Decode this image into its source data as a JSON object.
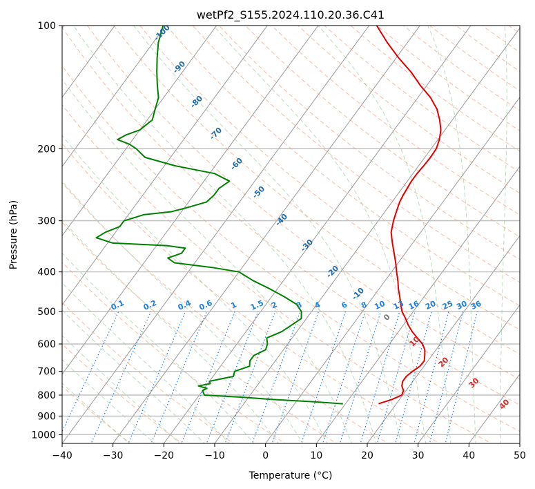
{
  "chart_data": {
    "type": "line",
    "subtype": "skew-t log-p sounding",
    "title": "wetPf2_S155.2024.110.20.36.C41",
    "xlabel": "Temperature (°C)",
    "ylabel": "Pressure (hPa)",
    "xlim": [
      -40,
      50
    ],
    "ylim": [
      1050,
      100
    ],
    "y_scale": "log",
    "x_ticks": [
      -40,
      -30,
      -20,
      -10,
      0,
      10,
      20,
      30,
      40,
      50
    ],
    "y_ticks": [
      100,
      200,
      300,
      400,
      500,
      600,
      700,
      800,
      900,
      1000
    ],
    "grid": true,
    "series": [
      {
        "color": "#e00000",
        "pressure": [
          840,
          820,
          800,
          780,
          760,
          740,
          720,
          700,
          680,
          660,
          640,
          620,
          600,
          580,
          560,
          540,
          520,
          500,
          480,
          460,
          440,
          420,
          400,
          380,
          360,
          340,
          320,
          300,
          290,
          280,
          270,
          260,
          250,
          240,
          230,
          220,
          210,
          200,
          190,
          180,
          170,
          160,
          150,
          140,
          130,
          120,
          110,
          100
        ],
        "values": [
          16.5,
          18.5,
          19.8,
          19.5,
          18.5,
          18.0,
          18.0,
          18.5,
          19.2,
          19.3,
          18.6,
          17.8,
          16.5,
          14.6,
          12.7,
          11.0,
          9.5,
          7.8,
          6.5,
          5.2,
          3.8,
          2.5,
          1.0,
          -0.5,
          -2.2,
          -4.0,
          -5.8,
          -7.0,
          -7.5,
          -8.0,
          -8.5,
          -8.8,
          -9.0,
          -9.2,
          -9.2,
          -9.0,
          -8.9,
          -9.0,
          -9.7,
          -10.8,
          -12.5,
          -14.6,
          -17.5,
          -21.3,
          -25.0,
          -29.5,
          -34.0,
          -38.5
        ]
      },
      {
        "color": "#008000",
        "pressure": [
          840,
          830,
          820,
          810,
          800,
          790,
          780,
          770,
          760,
          750,
          740,
          720,
          700,
          680,
          660,
          640,
          620,
          600,
          580,
          560,
          540,
          520,
          500,
          480,
          460,
          440,
          420,
          400,
          390,
          380,
          370,
          360,
          350,
          345,
          340,
          330,
          320,
          310,
          300,
          290,
          285,
          280,
          270,
          260,
          250,
          240,
          230,
          220,
          210,
          200,
          195,
          190,
          185,
          180,
          170,
          160,
          150,
          140,
          130,
          120,
          110,
          100
        ],
        "values": [
          9.5,
          3.0,
          -5.0,
          -11.0,
          -19.0,
          -19.5,
          -20.0,
          -19.5,
          -21.5,
          -19.5,
          -20.0,
          -16.0,
          -16.5,
          -14.3,
          -15.0,
          -15.0,
          -13.5,
          -14.0,
          -15.0,
          -13.0,
          -12.0,
          -11.0,
          -12.0,
          -14.0,
          -17.5,
          -21.5,
          -26.0,
          -30.0,
          -36.0,
          -44.0,
          -46.0,
          -44.0,
          -44.0,
          -48.0,
          -59.0,
          -63.0,
          -62.0,
          -60.0,
          -60.0,
          -57.0,
          -52.0,
          -50.0,
          -46.5,
          -46.0,
          -46.0,
          -45.0,
          -49.0,
          -58.0,
          -65.0,
          -68.0,
          -70.0,
          -73.0,
          -72.0,
          -70.0,
          -69.0,
          -70.0,
          -71.0,
          -73.0,
          -75.0,
          -77.0,
          -79.0,
          -80.5
        ]
      }
    ],
    "moist_adiabat_labels": [
      "-100",
      "-90",
      "-80",
      "-70",
      "-60",
      "-50",
      "-40",
      "-30",
      "-20",
      "-10",
      "0",
      "10",
      "20",
      "30",
      "40"
    ],
    "mixing_ratio_labels": [
      "0.1",
      "0.2",
      "0.4",
      "0.6",
      "1",
      "1.5",
      "2",
      "3",
      "4",
      "6",
      "8",
      "10",
      "13",
      "16",
      "20",
      "25",
      "30",
      "36"
    ]
  }
}
